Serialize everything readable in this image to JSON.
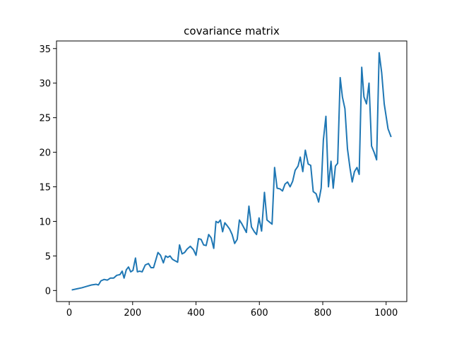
{
  "chart_data": {
    "type": "line",
    "title": "covariance matrix",
    "x": [
      10,
      25,
      40,
      55,
      70,
      85,
      92,
      100,
      110,
      120,
      130,
      140,
      150,
      160,
      167,
      173,
      180,
      187,
      194,
      201,
      209,
      215,
      222,
      230,
      240,
      250,
      258,
      266,
      280,
      288,
      297,
      304,
      311,
      318,
      326,
      334,
      342,
      348,
      356,
      364,
      372,
      382,
      392,
      400,
      408,
      416,
      424,
      432,
      440,
      448,
      456,
      463,
      470,
      477,
      484,
      491,
      498,
      506,
      514,
      522,
      530,
      537,
      544,
      559,
      567,
      575,
      584,
      591,
      599,
      607,
      616,
      624,
      632,
      640,
      648,
      656,
      665,
      673,
      681,
      689,
      697,
      705,
      713,
      722,
      729,
      737,
      745,
      754,
      762,
      770,
      779,
      787,
      795,
      802,
      810,
      818,
      826,
      833,
      840,
      847,
      855,
      862,
      870,
      878,
      886,
      893,
      900,
      908,
      915,
      923,
      930,
      938,
      946,
      954,
      962,
      970,
      978,
      986,
      994,
      1006,
      1015
    ],
    "values": [
      0.1,
      0.25,
      0.4,
      0.6,
      0.8,
      0.9,
      0.8,
      1.4,
      1.6,
      1.5,
      1.8,
      1.8,
      2.2,
      2.3,
      2.8,
      1.8,
      3.0,
      3.4,
      2.7,
      2.9,
      4.7,
      2.7,
      2.8,
      2.7,
      3.7,
      3.9,
      3.3,
      3.3,
      5.5,
      5.1,
      4.0,
      5.0,
      4.8,
      5.0,
      4.5,
      4.3,
      4.1,
      6.6,
      5.3,
      5.5,
      6.0,
      6.4,
      5.9,
      5.1,
      7.5,
      7.4,
      6.6,
      6.5,
      8.1,
      7.6,
      6.1,
      10.0,
      9.8,
      10.2,
      8.5,
      9.8,
      9.4,
      8.9,
      8.1,
      6.8,
      7.4,
      10.2,
      9.7,
      8.4,
      12.2,
      9.2,
      8.5,
      8.1,
      10.5,
      8.6,
      14.2,
      10.2,
      9.9,
      9.6,
      17.8,
      14.8,
      14.7,
      14.4,
      15.4,
      15.7,
      15.0,
      15.8,
      17.4,
      18.0,
      19.3,
      17.2,
      20.3,
      18.3,
      18.1,
      14.3,
      14.0,
      12.8,
      14.8,
      21.8,
      25.2,
      15.0,
      18.7,
      14.8,
      18.0,
      18.4,
      30.8,
      28.0,
      26.3,
      20.5,
      17.7,
      15.7,
      17.2,
      17.8,
      16.8,
      32.3,
      28.0,
      27.0,
      30.0,
      20.9,
      20.0,
      18.9,
      34.4,
      31.5,
      27.0,
      23.4,
      22.3
    ],
    "color": "#1f77b4",
    "xlim": [
      -40.25,
      1065.25
    ],
    "xticks": [
      0,
      200,
      400,
      600,
      800,
      1000
    ],
    "ylim": [
      -1.6,
      36.1
    ],
    "yticks": [
      0,
      5,
      10,
      15,
      20,
      25,
      30,
      35
    ]
  }
}
